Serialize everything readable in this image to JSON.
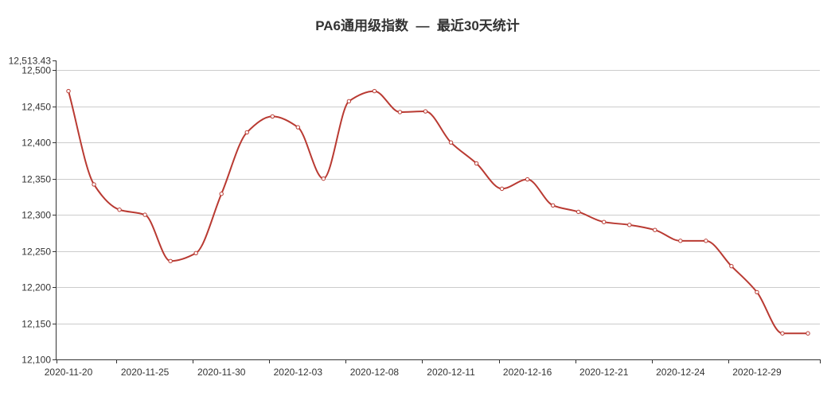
{
  "chart_data": {
    "type": "line",
    "title": "PA6通用级指数  —  最近30天统计",
    "xlabel": "",
    "ylabel": "",
    "ylim": [
      12100,
      12513.43
    ],
    "y_ticks": [
      12100,
      12150,
      12200,
      12250,
      12300,
      12350,
      12400,
      12450,
      12500
    ],
    "y_tick_labels": [
      "12,100",
      "12,150",
      "12,200",
      "12,250",
      "12,300",
      "12,350",
      "12,400",
      "12,450",
      "12,500"
    ],
    "y_max_label": "12,513.43",
    "x_tick_labels": [
      {
        "index": 0,
        "label": "2020-11-20"
      },
      {
        "index": 3,
        "label": "2020-11-25"
      },
      {
        "index": 6,
        "label": "2020-11-30"
      },
      {
        "index": 9,
        "label": "2020-12-03"
      },
      {
        "index": 12,
        "label": "2020-12-08"
      },
      {
        "index": 15,
        "label": "2020-12-11"
      },
      {
        "index": 18,
        "label": "2020-12-16"
      },
      {
        "index": 21,
        "label": "2020-12-21"
      },
      {
        "index": 24,
        "label": "2020-12-24"
      },
      {
        "index": 27,
        "label": "2020-12-29"
      }
    ],
    "grid": true,
    "line_color": "#b93a32",
    "series": [
      {
        "values": [
          12471,
          12342,
          12307,
          12300,
          12236,
          12247,
          12329,
          12414,
          12436,
          12421,
          12350,
          12457,
          12471,
          12442,
          12443,
          12400,
          12371,
          12336,
          12349,
          12313,
          12304,
          12290,
          12286,
          12279,
          12264,
          12264,
          12229,
          12193,
          12136,
          12136
        ]
      }
    ]
  }
}
